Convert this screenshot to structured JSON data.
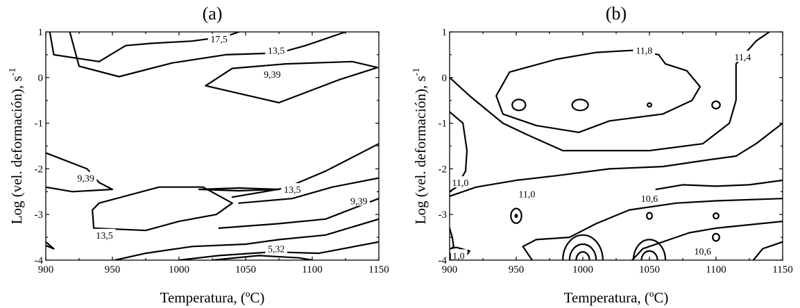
{
  "chart_data": [
    {
      "panel": "(a)",
      "type": "contour",
      "xlabel": "Temperatura, (ºC)",
      "ylabel": "Log (vel. deformación), s",
      "ylabel_sup": "-1",
      "xlim": [
        900,
        1150
      ],
      "ylim": [
        -4,
        1
      ],
      "xticks": [
        900,
        950,
        1000,
        1050,
        1100,
        1150
      ],
      "yticks": [
        1,
        0,
        -1,
        -2,
        -3,
        -4
      ],
      "contour_labels": [
        {
          "text": "17,5",
          "x": 1030,
          "y": 0.85
        },
        {
          "text": "13,5",
          "x": 1073,
          "y": 0.6
        },
        {
          "text": "9,39",
          "x": 1070,
          "y": 0.07
        },
        {
          "text": "9,39",
          "x": 930,
          "y": -2.2
        },
        {
          "text": "13,5",
          "x": 1085,
          "y": -2.45
        },
        {
          "text": "9,39",
          "x": 1135,
          "y": -2.7
        },
        {
          "text": "13,5",
          "x": 944,
          "y": -3.45
        },
        {
          "text": "5,32",
          "x": 1073,
          "y": -3.75
        }
      ],
      "contours": [
        [
          [
            903,
            1
          ],
          [
            906,
            0.5
          ],
          [
            940,
            0.35
          ],
          [
            960,
            0.7
          ],
          [
            980,
            0.75
          ],
          [
            1010,
            0.8
          ],
          [
            1035,
            0.9
          ],
          [
            1045,
            1
          ]
        ],
        [
          [
            918,
            1
          ],
          [
            925,
            0.25
          ],
          [
            955,
            0.02
          ],
          [
            995,
            0.32
          ],
          [
            1035,
            0.5
          ],
          [
            1075,
            0.54
          ],
          [
            1095,
            0.7
          ],
          [
            1125,
            1
          ]
        ],
        [
          [
            1020,
            -0.18
          ],
          [
            1040,
            0.2
          ],
          [
            1080,
            0.3
          ],
          [
            1130,
            0.35
          ],
          [
            1149,
            0.22
          ],
          [
            1120,
            -0.05
          ],
          [
            1075,
            -0.55
          ],
          [
            1020,
            -0.18
          ]
        ],
        [
          [
            900,
            -1.65
          ],
          [
            931,
            -2.0
          ],
          [
            940,
            -2.3
          ],
          [
            950,
            -2.45
          ],
          [
            920,
            -2.5
          ],
          [
            900,
            -2.4
          ]
        ],
        [
          [
            935,
            -2.9
          ],
          [
            936,
            -3.3
          ],
          [
            975,
            -3.35
          ],
          [
            1000,
            -3.15
          ],
          [
            1028,
            -3.0
          ],
          [
            1040,
            -2.75
          ],
          [
            1018,
            -2.4
          ],
          [
            985,
            -2.4
          ],
          [
            940,
            -2.75
          ],
          [
            935,
            -2.9
          ]
        ],
        [
          [
            1015,
            -2.45
          ],
          [
            1045,
            -2.42
          ],
          [
            1075,
            -2.45
          ],
          [
            1045,
            -2.48
          ],
          [
            1015,
            -2.45
          ]
        ],
        [
          [
            1040,
            -2.62
          ],
          [
            1080,
            -2.42
          ],
          [
            1110,
            -2.05
          ],
          [
            1150,
            -1.45
          ]
        ],
        [
          [
            1045,
            -2.75
          ],
          [
            1085,
            -2.65
          ],
          [
            1115,
            -2.4
          ],
          [
            1150,
            -2.2
          ]
        ],
        [
          [
            1030,
            -3.3
          ],
          [
            1075,
            -3.2
          ],
          [
            1110,
            -3.1
          ],
          [
            1150,
            -2.65
          ]
        ],
        [
          [
            952,
            -4.0
          ],
          [
            975,
            -3.85
          ],
          [
            1010,
            -3.7
          ],
          [
            1050,
            -3.65
          ],
          [
            1075,
            -3.55
          ],
          [
            1110,
            -3.45
          ],
          [
            1150,
            -3.1
          ]
        ],
        [
          [
            1000,
            -4.0
          ],
          [
            1030,
            -3.9
          ],
          [
            1070,
            -3.82
          ],
          [
            1105,
            -3.85
          ],
          [
            1150,
            -3.6
          ]
        ],
        [
          [
            1025,
            -4.0
          ],
          [
            1060,
            -3.9
          ],
          [
            1090,
            -3.95
          ],
          [
            1100,
            -4.0
          ]
        ],
        [
          [
            900,
            -3.6
          ],
          [
            906,
            -3.75
          ],
          [
            900,
            -3.68
          ]
        ]
      ]
    },
    {
      "panel": "(b)",
      "type": "contour",
      "xlabel": "Temperatura, (ºC)",
      "ylabel": "Log (vel. deformación), s",
      "ylabel_sup": "-1",
      "xlim": [
        900,
        1150
      ],
      "ylim": [
        -4,
        1
      ],
      "xticks": [
        900,
        950,
        1000,
        1050,
        1100,
        1150
      ],
      "yticks": [
        1,
        0,
        -1,
        -2,
        -3,
        -4
      ],
      "contour_labels": [
        {
          "text": "11,8",
          "x": 1046,
          "y": 0.6
        },
        {
          "text": "11,4",
          "x": 1120,
          "y": 0.45
        },
        {
          "text": "11,0",
          "x": 908,
          "y": -2.3
        },
        {
          "text": "11,0",
          "x": 958,
          "y": -2.55
        },
        {
          "text": "10,6",
          "x": 1050,
          "y": -2.65
        },
        {
          "text": "10,6",
          "x": 1090,
          "y": -3.8
        },
        {
          "text": "11,0",
          "x": 905,
          "y": -3.9
        }
      ],
      "contours": [
        [
          [
            935,
            -0.4
          ],
          [
            945,
            0.12
          ],
          [
            980,
            0.4
          ],
          [
            1010,
            0.55
          ],
          [
            1040,
            0.6
          ],
          [
            1057,
            0.5
          ],
          [
            1062,
            0.3
          ],
          [
            1078,
            0.15
          ],
          [
            1088,
            -0.2
          ],
          [
            1082,
            -0.5
          ],
          [
            1060,
            -0.8
          ],
          [
            1020,
            -0.95
          ],
          [
            997,
            -1.2
          ],
          [
            965,
            -1.05
          ],
          [
            940,
            -0.8
          ],
          [
            935,
            -0.4
          ]
        ],
        [
          [
            900,
            0.0
          ],
          [
            915,
            -0.4
          ],
          [
            940,
            -1.0
          ],
          [
            958,
            -1.25
          ],
          [
            985,
            -1.6
          ],
          [
            1050,
            -1.6
          ],
          [
            1090,
            -1.45
          ],
          [
            1110,
            -1.0
          ],
          [
            1115,
            -0.5
          ],
          [
            1115,
            0.3
          ],
          [
            1130,
            0.8
          ],
          [
            1140,
            1.0
          ]
        ],
        [
          [
            900,
            -2.6
          ],
          [
            920,
            -2.4
          ],
          [
            950,
            -2.25
          ],
          [
            980,
            -2.15
          ],
          [
            1020,
            -2.0
          ],
          [
            1060,
            -1.95
          ],
          [
            1090,
            -1.82
          ],
          [
            1115,
            -1.72
          ],
          [
            1130,
            -1.45
          ],
          [
            1150,
            -1.0
          ]
        ],
        [
          [
            900,
            -0.75
          ],
          [
            910,
            -1.0
          ],
          [
            913,
            -1.6
          ],
          [
            912,
            -2.05
          ],
          [
            905,
            -2.4
          ],
          [
            900,
            -2.5
          ]
        ],
        [
          [
            900,
            -3.3
          ],
          [
            902,
            -3.5
          ],
          [
            903,
            -3.7
          ],
          [
            900,
            -3.78
          ]
        ],
        [
          [
            962,
            -4.0
          ],
          [
            955,
            -3.7
          ],
          [
            965,
            -3.55
          ],
          [
            990,
            -3.5
          ],
          [
            1010,
            -3.2
          ],
          [
            1035,
            -2.9
          ],
          [
            1070,
            -2.75
          ],
          [
            1100,
            -2.7
          ],
          [
            1150,
            -2.65
          ]
        ],
        [
          [
            1037,
            -4.0
          ],
          [
            1045,
            -3.75
          ],
          [
            1080,
            -3.4
          ],
          [
            1100,
            -3.3
          ],
          [
            1150,
            -3.15
          ]
        ],
        [
          [
            1128,
            -4.0
          ],
          [
            1135,
            -3.75
          ],
          [
            1150,
            -3.6
          ]
        ],
        [
          [
            910,
            -4.0
          ],
          [
            915,
            -3.8
          ],
          [
            905,
            -3.72
          ],
          [
            900,
            -3.75
          ]
        ],
        [
          [
            1055,
            -2.45
          ],
          [
            1075,
            -2.35
          ],
          [
            1100,
            -2.38
          ],
          [
            1125,
            -2.35
          ],
          [
            1150,
            -2.25
          ]
        ]
      ],
      "ellipses": [
        {
          "cx": 952,
          "cy": -0.6,
          "rx": 5,
          "ry": 0.12
        },
        {
          "cx": 998,
          "cy": -0.6,
          "rx": 6,
          "ry": 0.12
        },
        {
          "cx": 1050,
          "cy": -0.6,
          "rx": 1.5,
          "ry": 0.04
        },
        {
          "cx": 1100,
          "cy": -0.6,
          "rx": 3,
          "ry": 0.08
        },
        {
          "cx": 950,
          "cy": -3.03,
          "rx": 4,
          "ry": 0.16
        },
        {
          "cx": 950,
          "cy": -3.03,
          "rx": 0.7,
          "ry": 0.03
        },
        {
          "cx": 1050,
          "cy": -3.03,
          "rx": 2,
          "ry": 0.07
        },
        {
          "cx": 1100,
          "cy": -3.03,
          "rx": 2,
          "ry": 0.06
        },
        {
          "cx": 1100,
          "cy": -3.5,
          "rx": 2.5,
          "ry": 0.08
        },
        {
          "cx": 1000,
          "cy": -4.0,
          "rx": 15,
          "ry": 0.55
        },
        {
          "cx": 1000,
          "cy": -4.0,
          "rx": 10,
          "ry": 0.35
        },
        {
          "cx": 1000,
          "cy": -4.0,
          "rx": 5,
          "ry": 0.18
        },
        {
          "cx": 1050,
          "cy": -4.0,
          "rx": 12,
          "ry": 0.45
        },
        {
          "cx": 1050,
          "cy": -4.0,
          "rx": 6,
          "ry": 0.2
        }
      ]
    }
  ]
}
